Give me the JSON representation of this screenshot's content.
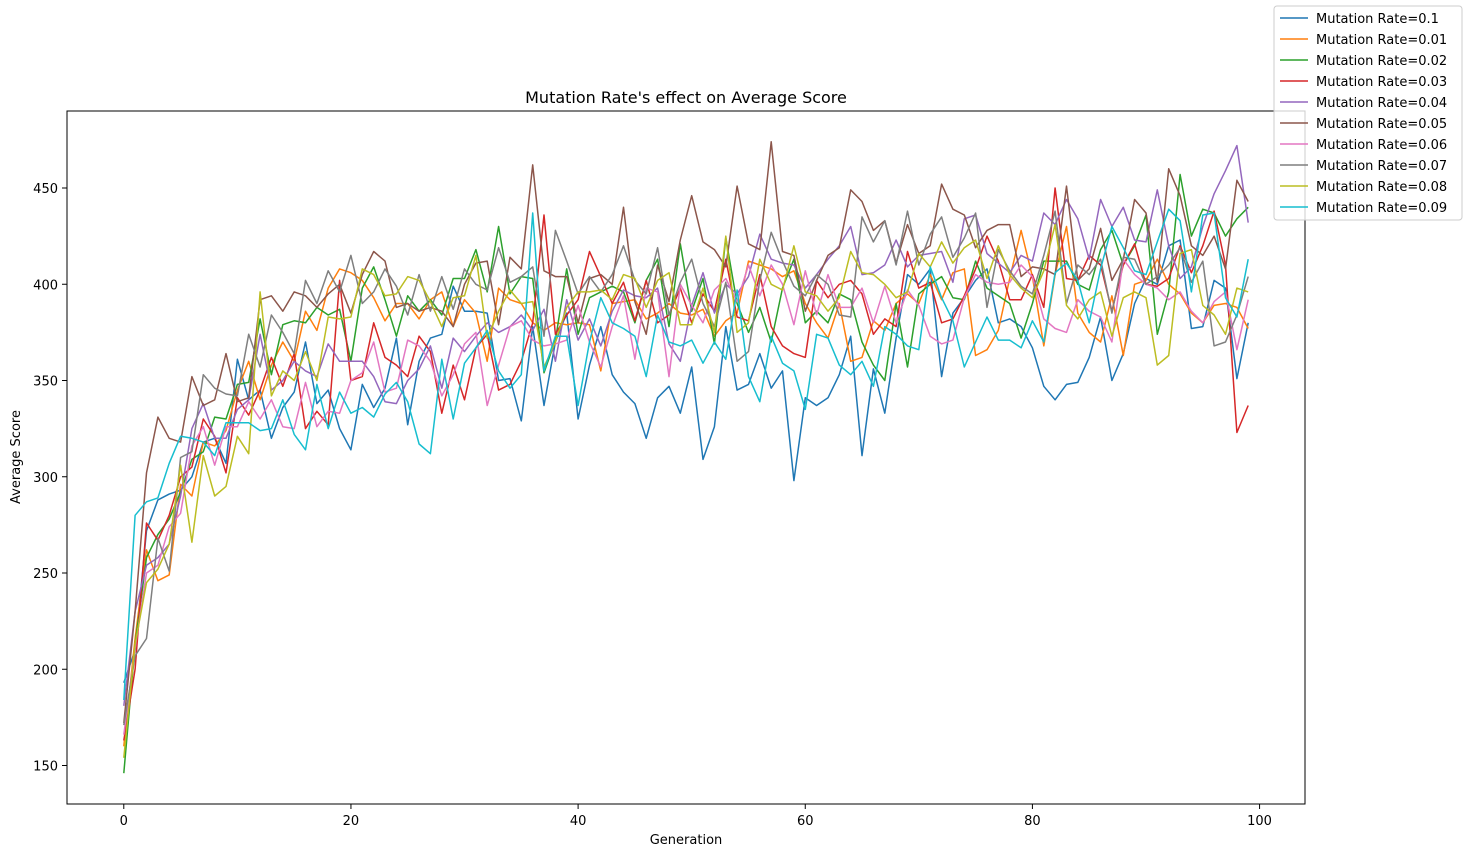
{
  "chart_data": {
    "type": "line",
    "title": "Mutation Rate's effect on Average Score",
    "xlabel": "Generation",
    "ylabel": "Average Score",
    "xlim": [
      -5,
      104
    ],
    "ylim": [
      130,
      490
    ],
    "xticks": [
      0,
      20,
      40,
      60,
      80,
      100
    ],
    "yticks": [
      150,
      200,
      250,
      300,
      350,
      400,
      450
    ],
    "grid": false,
    "legend_position": "top-right",
    "x": [
      0,
      1,
      2,
      3,
      4,
      5,
      6,
      7,
      8,
      9,
      10,
      11,
      12,
      13,
      14,
      15,
      16,
      17,
      18,
      19,
      20,
      21,
      22,
      23,
      24,
      25,
      26,
      27,
      28,
      29,
      30,
      31,
      32,
      33,
      34,
      35,
      36,
      37,
      38,
      39,
      40,
      41,
      42,
      43,
      44,
      45,
      46,
      47,
      48,
      49,
      50,
      51,
      52,
      53,
      54,
      55,
      56,
      57,
      58,
      59,
      60,
      61,
      62,
      63,
      64,
      65,
      66,
      67,
      68,
      69,
      70,
      71,
      72,
      73,
      74,
      75,
      76,
      77,
      78,
      79,
      80,
      81,
      82,
      83,
      84,
      85,
      86,
      87,
      88,
      89,
      90,
      91,
      92,
      93,
      94,
      95,
      96,
      97,
      98,
      99
    ],
    "series": [
      {
        "name": "Mutation Rate=0.1",
        "color": "#1f77b4",
        "values": [
          193,
          210,
          272,
          288,
          291,
          293,
          300,
          318,
          320,
          307,
          361,
          340,
          345,
          320,
          336,
          344,
          370,
          338,
          345,
          325,
          314,
          348,
          336,
          346,
          372,
          327,
          360,
          372,
          374,
          399,
          386,
          386,
          385,
          350,
          351,
          329,
          378,
          337,
          370,
          385,
          330,
          358,
          378,
          353,
          344,
          338,
          320,
          341,
          347,
          333,
          357,
          309,
          326,
          378,
          345,
          348,
          364,
          346,
          355,
          298,
          341,
          337,
          341,
          353,
          373,
          311,
          356,
          333,
          372,
          405,
          400,
          408,
          352,
          385,
          393,
          402,
          408,
          380,
          382,
          378,
          367,
          347,
          340,
          348,
          349,
          362,
          383,
          350,
          364,
          390,
          403,
          400,
          420,
          423,
          377,
          378,
          402,
          398,
          351,
          380
        ]
      },
      {
        "name": "Mutation Rate=0.01",
        "color": "#ff7f0e",
        "values": [
          160,
          216,
          262,
          246,
          249,
          296,
          290,
          318,
          316,
          324,
          345,
          360,
          340,
          358,
          370,
          360,
          386,
          376,
          398,
          408,
          406,
          402,
          393,
          381,
          390,
          390,
          382,
          392,
          396,
          378,
          392,
          385,
          360,
          398,
          392,
          390,
          380,
          376,
          380,
          379,
          380,
          379,
          355,
          390,
          391,
          392,
          382,
          385,
          390,
          385,
          384,
          387,
          373,
          381,
          385,
          412,
          410,
          408,
          404,
          407,
          390,
          380,
          372,
          390,
          360,
          362,
          381,
          376,
          390,
          395,
          390,
          405,
          392,
          406,
          408,
          363,
          366,
          376,
          403,
          428,
          404,
          368,
          405,
          430,
          385,
          375,
          370,
          394,
          363,
          400,
          402,
          413,
          400,
          395,
          385,
          380,
          389,
          390,
          388,
          377
        ]
      },
      {
        "name": "Mutation Rate=0.02",
        "color": "#2ca02c",
        "values": [
          146,
          213,
          258,
          270,
          278,
          292,
          309,
          313,
          331,
          330,
          348,
          349,
          382,
          353,
          379,
          381,
          380,
          388,
          384,
          387,
          360,
          398,
          409,
          392,
          373,
          394,
          386,
          392,
          384,
          403,
          403,
          418,
          396,
          430,
          395,
          404,
          403,
          354,
          371,
          408,
          374,
          393,
          396,
          399,
          396,
          380,
          402,
          413,
          378,
          421,
          386,
          403,
          369,
          424,
          390,
          375,
          388,
          370,
          398,
          413,
          380,
          386,
          380,
          395,
          392,
          370,
          358,
          350,
          390,
          357,
          395,
          400,
          404,
          393,
          392,
          412,
          398,
          394,
          390,
          372,
          390,
          412,
          412,
          412,
          400,
          397,
          418,
          428,
          410,
          420,
          436,
          374,
          396,
          457,
          425,
          439,
          437,
          425,
          434,
          440
        ]
      },
      {
        "name": "Mutation Rate=0.03",
        "color": "#d62728",
        "values": [
          163,
          200,
          276,
          267,
          280,
          300,
          305,
          330,
          321,
          302,
          341,
          332,
          345,
          362,
          347,
          364,
          325,
          334,
          327,
          402,
          350,
          352,
          380,
          362,
          358,
          352,
          373,
          365,
          333,
          358,
          340,
          367,
          374,
          345,
          348,
          360,
          380,
          436,
          374,
          384,
          392,
          417,
          404,
          390,
          401,
          381,
          402,
          380,
          384,
          398,
          380,
          395,
          386,
          413,
          383,
          381,
          405,
          378,
          368,
          364,
          362,
          402,
          393,
          400,
          402,
          395,
          374,
          382,
          378,
          417,
          398,
          401,
          380,
          382,
          394,
          408,
          425,
          412,
          392,
          392,
          405,
          388,
          450,
          403,
          402,
          415,
          410,
          386,
          410,
          421,
          400,
          399,
          403,
          420,
          406,
          420,
          438,
          410,
          323,
          337
        ]
      },
      {
        "name": "Mutation Rate=0.04",
        "color": "#9467bd",
        "values": [
          181,
          230,
          254,
          258,
          265,
          290,
          325,
          338,
          320,
          320,
          335,
          340,
          374,
          345,
          350,
          360,
          355,
          352,
          369,
          360,
          360,
          360,
          352,
          339,
          338,
          350,
          356,
          368,
          346,
          372,
          365,
          373,
          380,
          375,
          378,
          384,
          376,
          387,
          360,
          392,
          371,
          382,
          368,
          386,
          397,
          394,
          393,
          398,
          369,
          360,
          389,
          406,
          385,
          400,
          395,
          404,
          426,
          413,
          411,
          410,
          398,
          405,
          413,
          420,
          430,
          405,
          406,
          410,
          423,
          409,
          415,
          416,
          417,
          401,
          434,
          436,
          416,
          411,
          406,
          415,
          412,
          437,
          431,
          444,
          434,
          413,
          444,
          430,
          440,
          423,
          422,
          449,
          420,
          403,
          409,
          430,
          447,
          459,
          472,
          432
        ]
      },
      {
        "name": "Mutation Rate=0.05",
        "color": "#8c564b",
        "values": [
          172,
          230,
          302,
          331,
          320,
          318,
          352,
          337,
          340,
          364,
          339,
          341,
          392,
          394,
          386,
          396,
          394,
          388,
          395,
          400,
          385,
          405,
          417,
          412,
          388,
          390,
          386,
          388,
          386,
          378,
          400,
          411,
          412,
          379,
          414,
          408,
          462,
          407,
          404,
          404,
          380,
          403,
          405,
          400,
          440,
          391,
          374,
          410,
          391,
          423,
          446,
          422,
          418,
          409,
          451,
          421,
          418,
          474,
          417,
          415,
          386,
          402,
          415,
          419,
          449,
          443,
          428,
          433,
          411,
          431,
          416,
          420,
          452,
          439,
          436,
          419,
          428,
          431,
          431,
          404,
          409,
          408,
          405,
          451,
          402,
          408,
          429,
          402,
          413,
          444,
          437,
          401,
          460,
          446,
          420,
          415,
          425,
          408,
          454,
          443
        ]
      },
      {
        "name": "Mutation Rate=0.06",
        "color": "#e377c2",
        "values": [
          166,
          211,
          250,
          254,
          274,
          281,
          316,
          326,
          306,
          326,
          326,
          339,
          330,
          340,
          326,
          325,
          349,
          326,
          334,
          333,
          350,
          354,
          370,
          344,
          346,
          371,
          368,
          360,
          342,
          353,
          369,
          375,
          337,
          358,
          378,
          381,
          371,
          368,
          369,
          371,
          389,
          370,
          357,
          378,
          394,
          361,
          398,
          396,
          352,
          400,
          389,
          380,
          397,
          403,
          391,
          410,
          394,
          410,
          400,
          379,
          407,
          384,
          405,
          388,
          388,
          398,
          380,
          399,
          380,
          397,
          389,
          373,
          369,
          371,
          393,
          405,
          401,
          400,
          401,
          410,
          404,
          382,
          377,
          375,
          392,
          386,
          383,
          370,
          413,
          405,
          400,
          398,
          392,
          396,
          386,
          380,
          391,
          396,
          366,
          392
        ]
      },
      {
        "name": "Mutation Rate=0.07",
        "color": "#7f7f7f",
        "values": [
          171,
          207,
          216,
          268,
          251,
          310,
          313,
          353,
          346,
          343,
          342,
          374,
          357,
          384,
          375,
          364,
          402,
          390,
          407,
          396,
          415,
          390,
          396,
          408,
          399,
          384,
          405,
          386,
          404,
          387,
          408,
          400,
          397,
          419,
          401,
          404,
          409,
          373,
          428,
          412,
          395,
          404,
          396,
          405,
          420,
          402,
          395,
          419,
          384,
          401,
          413,
          390,
          378,
          401,
          360,
          365,
          402,
          427,
          412,
          399,
          394,
          405,
          400,
          384,
          383,
          435,
          422,
          433,
          410,
          438,
          410,
          426,
          435,
          414,
          424,
          437,
          388,
          418,
          407,
          399,
          395,
          415,
          438,
          390,
          410,
          405,
          413,
          385,
          414,
          413,
          400,
          404,
          410,
          419,
          401,
          412,
          368,
          370,
          384,
          404
        ]
      },
      {
        "name": "Mutation Rate=0.08",
        "color": "#bcbd22",
        "values": [
          154,
          213,
          245,
          252,
          265,
          306,
          266,
          311,
          290,
          295,
          321,
          312,
          396,
          342,
          355,
          350,
          365,
          350,
          383,
          382,
          383,
          408,
          405,
          394,
          395,
          404,
          402,
          391,
          378,
          393,
          394,
          415,
          372,
          386,
          397,
          390,
          391,
          357,
          370,
          388,
          396,
          396,
          397,
          392,
          405,
          403,
          388,
          402,
          406,
          379,
          379,
          398,
          375,
          425,
          375,
          380,
          413,
          400,
          397,
          420,
          396,
          394,
          386,
          393,
          417,
          406,
          405,
          400,
          393,
          396,
          416,
          409,
          422,
          411,
          419,
          423,
          403,
          420,
          405,
          398,
          393,
          407,
          431,
          389,
          382,
          392,
          396,
          373,
          393,
          396,
          393,
          358,
          363,
          416,
          418,
          389,
          384,
          374,
          398,
          396
        ]
      },
      {
        "name": "Mutation Rate=0.09",
        "color": "#17becf",
        "values": [
          184,
          280,
          287,
          289,
          307,
          321,
          320,
          318,
          311,
          328,
          328,
          328,
          324,
          325,
          340,
          322,
          314,
          348,
          325,
          344,
          333,
          336,
          331,
          343,
          349,
          339,
          317,
          312,
          361,
          330,
          359,
          367,
          376,
          355,
          346,
          353,
          437,
          355,
          373,
          373,
          337,
          370,
          393,
          380,
          377,
          373,
          352,
          384,
          370,
          368,
          371,
          359,
          370,
          361,
          397,
          352,
          339,
          373,
          359,
          355,
          335,
          374,
          372,
          358,
          353,
          360,
          347,
          378,
          374,
          368,
          366,
          409,
          393,
          381,
          357,
          370,
          383,
          371,
          371,
          367,
          381,
          370,
          406,
          411,
          402,
          380,
          408,
          430,
          419,
          407,
          405,
          422,
          439,
          433,
          396,
          436,
          437,
          393,
          383,
          413
        ]
      }
    ]
  }
}
